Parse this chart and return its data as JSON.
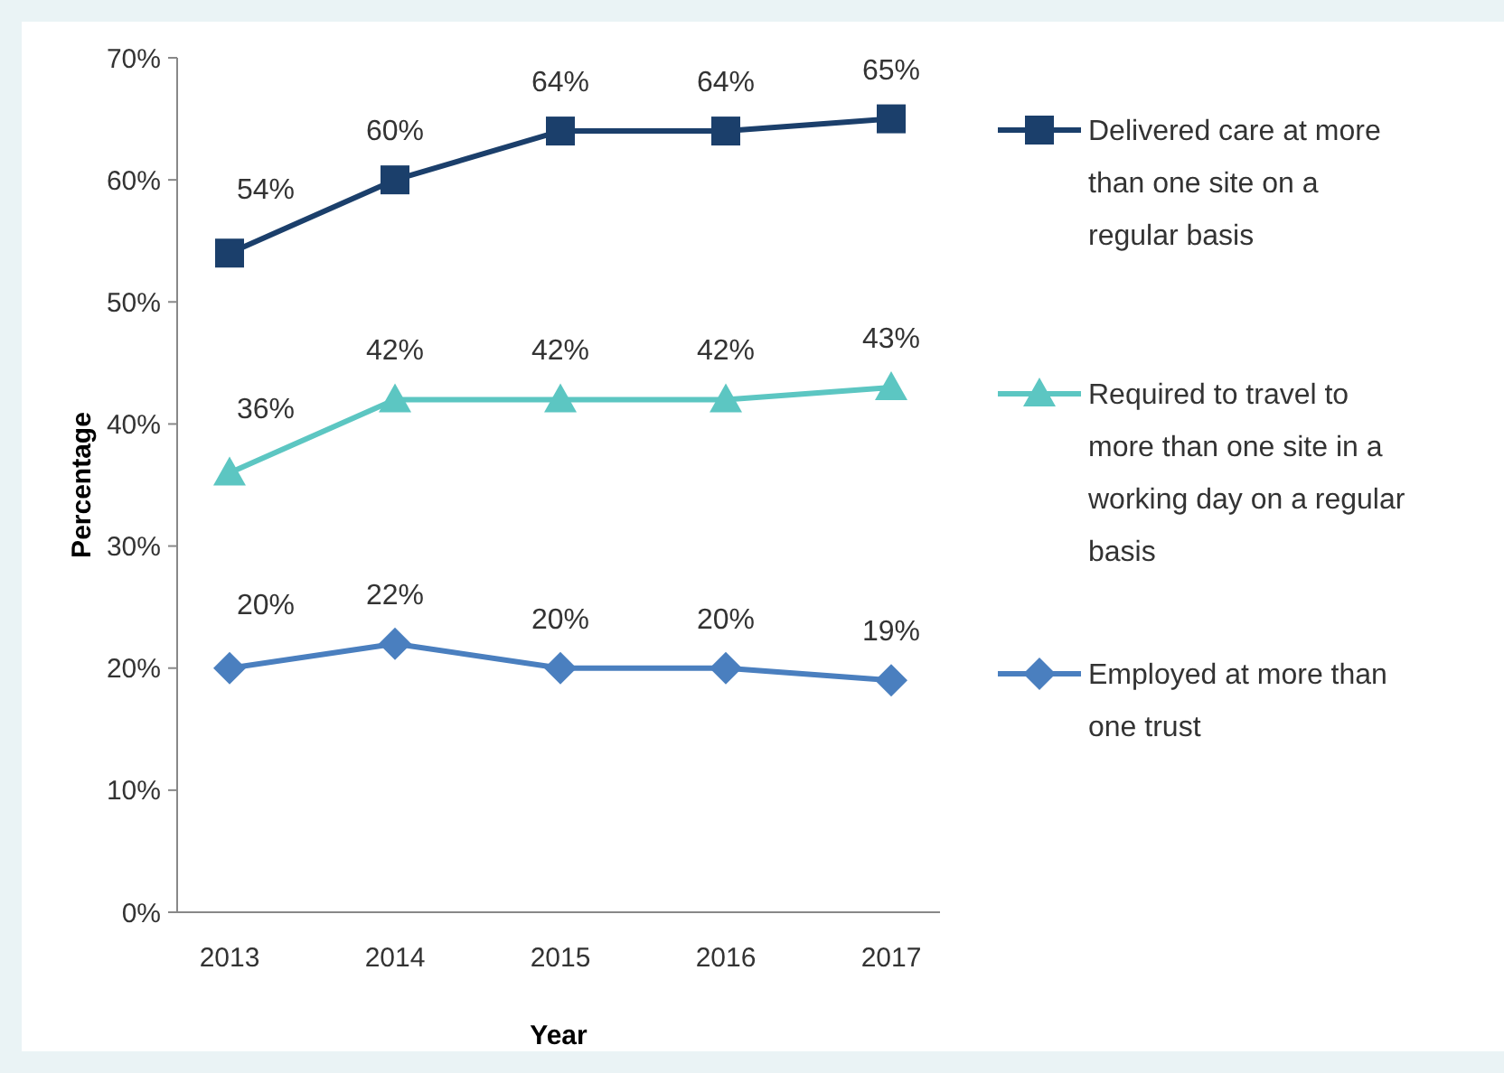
{
  "chart_data": {
    "type": "line",
    "xlabel": "Year",
    "ylabel": "Percentage",
    "categories": [
      "2013",
      "2014",
      "2015",
      "2016",
      "2017"
    ],
    "ylim": [
      0,
      70
    ],
    "yticks": [
      {
        "value": 0,
        "label": "0%"
      },
      {
        "value": 10,
        "label": "10%"
      },
      {
        "value": 20,
        "label": "20%"
      },
      {
        "value": 30,
        "label": "30%"
      },
      {
        "value": 40,
        "label": "40%"
      },
      {
        "value": 50,
        "label": "50%"
      },
      {
        "value": 60,
        "label": "60%"
      },
      {
        "value": 70,
        "label": "70%"
      }
    ],
    "series": [
      {
        "name": "Delivered care at more than one site on a regular basis",
        "color": "#1b3f6b",
        "marker": "square",
        "values": [
          54,
          60,
          64,
          64,
          65
        ],
        "value_labels": [
          "54%",
          "60%",
          "64%",
          "64%",
          "65%"
        ]
      },
      {
        "name": "Required to travel to more than one site in a working day on a regular basis",
        "color": "#5cc6c2",
        "marker": "triangle",
        "values": [
          36,
          42,
          42,
          42,
          43
        ],
        "value_labels": [
          "36%",
          "42%",
          "42%",
          "42%",
          "43%"
        ]
      },
      {
        "name": "Employed at more than one trust",
        "color": "#4a7fbf",
        "marker": "diamond",
        "values": [
          20,
          22,
          20,
          20,
          19
        ],
        "value_labels": [
          "20%",
          "22%",
          "20%",
          "20%",
          "19%"
        ]
      }
    ],
    "legend": "right",
    "grid": false
  }
}
